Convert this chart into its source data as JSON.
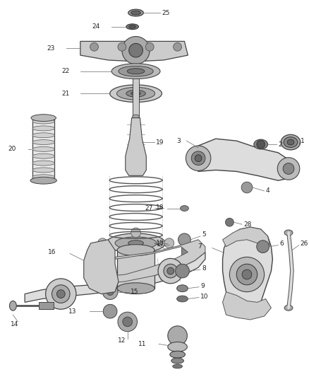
{
  "bg_color": "#ffffff",
  "line_color": "#555555",
  "label_color": "#222222",
  "fig_width": 4.38,
  "fig_height": 5.33,
  "dpi": 100
}
